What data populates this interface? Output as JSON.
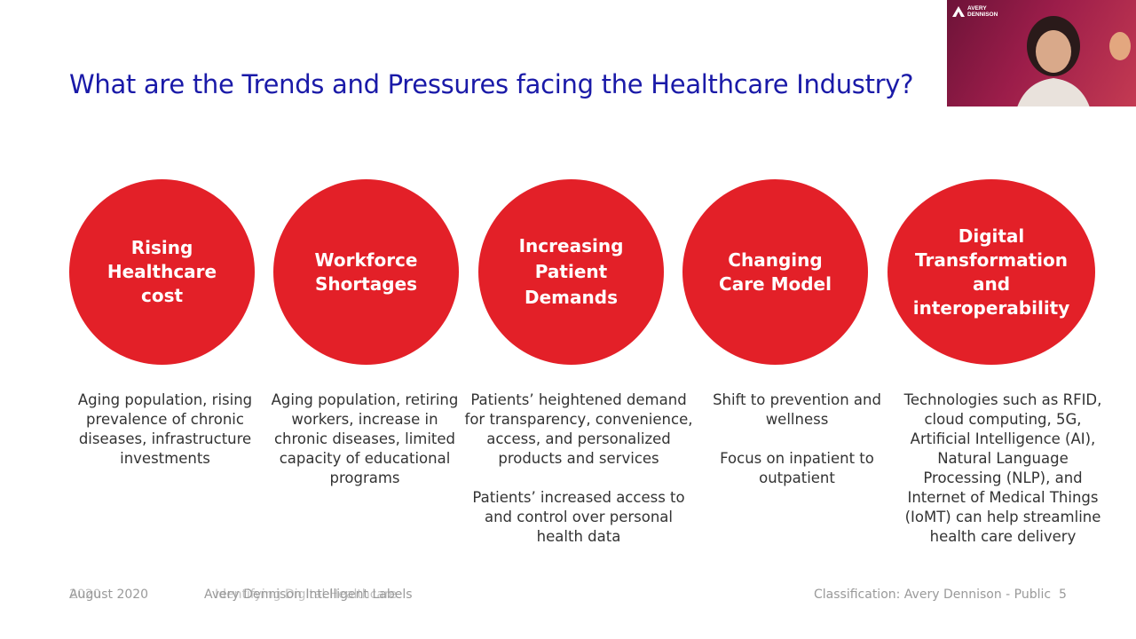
{
  "slide": {
    "title": "What are the Trends and Pressures facing the Healthcare Industry?",
    "accent_color": "#e32028",
    "title_color": "#1a1aa8",
    "trends": [
      {
        "heading": "Rising Healthcare cost",
        "description": [
          "Aging population, rising prevalence of chronic diseases, infrastructure investments"
        ]
      },
      {
        "heading": "Workforce Shortages",
        "description": [
          "Aging population, retiring workers, increase in chronic diseases, limited capacity of educational programs"
        ]
      },
      {
        "heading": "Increasing Patient Demands",
        "description": [
          "Patients’ heightened demand for transparency, convenience, access, and personalized products and services",
          "Patients’ increased access to and control over personal health data"
        ]
      },
      {
        "heading": "Changing Care Model",
        "description": [
          "Shift to prevention and wellness",
          "Focus on inpatient to outpatient"
        ]
      },
      {
        "heading": "Digital Transformation and interoperability",
        "description": [
          "Technologies such as RFID, cloud computing, 5G, Artificial Intelligence (AI), Natural Language Processing (NLP), and Internet of Medical Things (IoMT) can help streamline health care delivery"
        ]
      }
    ],
    "footer": {
      "date": "August 2020",
      "date_overlay": "2020",
      "topic": "Avery Dennison Intelligent Labels",
      "topic_overlay": "Identifying Digital Healthcare",
      "classification": "Classification: Avery Dennison - Public",
      "page_number": "5"
    }
  },
  "webcam": {
    "logo_line1": "AVERY",
    "logo_line2": "DENNISON"
  }
}
